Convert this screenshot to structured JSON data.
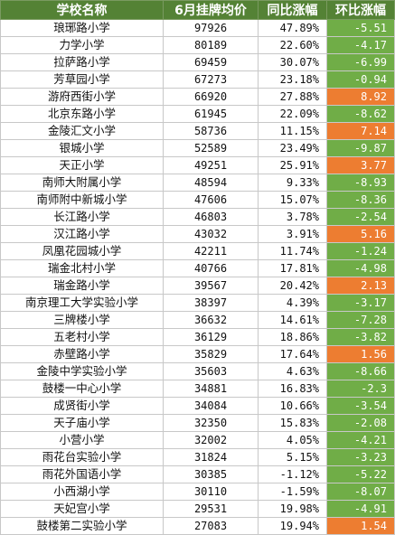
{
  "table": {
    "headers": [
      "学校名称",
      "6月挂牌均价",
      "同比涨幅",
      "环比涨幅"
    ],
    "colors": {
      "header_bg": "#548235",
      "negative_bg": "#70ad47",
      "positive_bg": "#ed7d31"
    },
    "rows": [
      {
        "school": "琅琊路小学",
        "price": "97926",
        "yoy": "47.89%",
        "mom": "-5.51"
      },
      {
        "school": "力学小学",
        "price": "80189",
        "yoy": "22.60%",
        "mom": "-4.17"
      },
      {
        "school": "拉萨路小学",
        "price": "69459",
        "yoy": "30.07%",
        "mom": "-6.99"
      },
      {
        "school": "芳草园小学",
        "price": "67273",
        "yoy": "23.18%",
        "mom": "-0.94"
      },
      {
        "school": "游府西街小学",
        "price": "66920",
        "yoy": "27.88%",
        "mom": "8.92"
      },
      {
        "school": "北京东路小学",
        "price": "61945",
        "yoy": "22.09%",
        "mom": "-8.62"
      },
      {
        "school": "金陵汇文小学",
        "price": "58736",
        "yoy": "11.15%",
        "mom": "7.14"
      },
      {
        "school": "银城小学",
        "price": "52589",
        "yoy": "23.49%",
        "mom": "-9.87"
      },
      {
        "school": "天正小学",
        "price": "49251",
        "yoy": "25.91%",
        "mom": "3.77"
      },
      {
        "school": "南师大附属小学",
        "price": "48594",
        "yoy": "9.33%",
        "mom": "-8.93"
      },
      {
        "school": "南师附中新城小学",
        "price": "47606",
        "yoy": "15.07%",
        "mom": "-8.36"
      },
      {
        "school": "长江路小学",
        "price": "46803",
        "yoy": "3.78%",
        "mom": "-2.54"
      },
      {
        "school": "汉江路小学",
        "price": "43032",
        "yoy": "3.91%",
        "mom": "5.16"
      },
      {
        "school": "凤凰花园城小学",
        "price": "42211",
        "yoy": "11.74%",
        "mom": "-1.24"
      },
      {
        "school": "瑞金北村小学",
        "price": "40766",
        "yoy": "17.81%",
        "mom": "-4.98"
      },
      {
        "school": "瑞金路小学",
        "price": "39567",
        "yoy": "20.42%",
        "mom": "2.13"
      },
      {
        "school": "南京理工大学实验小学",
        "price": "38397",
        "yoy": "4.39%",
        "mom": "-3.17"
      },
      {
        "school": "三牌楼小学",
        "price": "36632",
        "yoy": "14.61%",
        "mom": "-7.28"
      },
      {
        "school": "五老村小学",
        "price": "36129",
        "yoy": "18.86%",
        "mom": "-3.82"
      },
      {
        "school": "赤壁路小学",
        "price": "35829",
        "yoy": "17.64%",
        "mom": "1.56"
      },
      {
        "school": "金陵中学实验小学",
        "price": "35603",
        "yoy": "4.63%",
        "mom": "-8.66"
      },
      {
        "school": "鼓楼一中心小学",
        "price": "34881",
        "yoy": "16.83%",
        "mom": "-2.3"
      },
      {
        "school": "成贤街小学",
        "price": "34084",
        "yoy": "10.66%",
        "mom": "-3.54"
      },
      {
        "school": "天子庙小学",
        "price": "32350",
        "yoy": "15.83%",
        "mom": "-2.08"
      },
      {
        "school": "小营小学",
        "price": "32002",
        "yoy": "4.05%",
        "mom": "-4.21"
      },
      {
        "school": "雨花台实验小学",
        "price": "31824",
        "yoy": "5.15%",
        "mom": "-3.23"
      },
      {
        "school": "雨花外国语小学",
        "price": "30385",
        "yoy": "-1.12%",
        "mom": "-5.22"
      },
      {
        "school": "小西湖小学",
        "price": "30110",
        "yoy": "-1.59%",
        "mom": "-8.07"
      },
      {
        "school": "天妃宫小学",
        "price": "29531",
        "yoy": "19.98%",
        "mom": "-4.91"
      },
      {
        "school": "鼓楼第二实验小学",
        "price": "27083",
        "yoy": "19.94%",
        "mom": "1.54"
      }
    ]
  }
}
